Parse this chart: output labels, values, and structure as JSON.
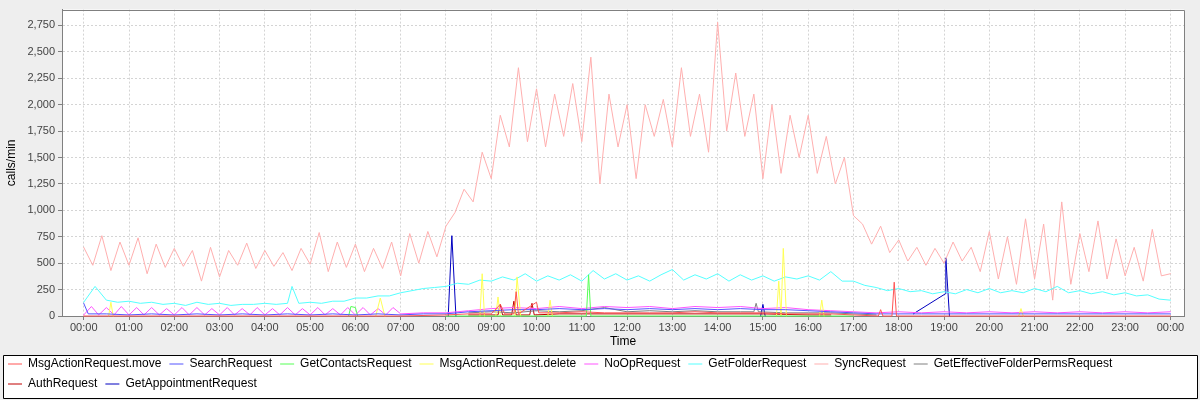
{
  "chart_data": {
    "type": "line",
    "xlabel": "Time",
    "ylabel": "calls/min",
    "xlim": [
      -0.48,
      24.3
    ],
    "xticks": [
      {
        "value": 0,
        "label": "00:00"
      },
      {
        "value": 1,
        "label": "01:00"
      },
      {
        "value": 2,
        "label": "02:00"
      },
      {
        "value": 3,
        "label": "03:00"
      },
      {
        "value": 4,
        "label": "04:00"
      },
      {
        "value": 5,
        "label": "05:00"
      },
      {
        "value": 6,
        "label": "06:00"
      },
      {
        "value": 7,
        "label": "07:00"
      },
      {
        "value": 8,
        "label": "08:00"
      },
      {
        "value": 9,
        "label": "09:00"
      },
      {
        "value": 10,
        "label": "10:00"
      },
      {
        "value": 11,
        "label": "11:00"
      },
      {
        "value": 12,
        "label": "12:00"
      },
      {
        "value": 13,
        "label": "13:00"
      },
      {
        "value": 14,
        "label": "14:00"
      },
      {
        "value": 15,
        "label": "15:00"
      },
      {
        "value": 16,
        "label": "16:00"
      },
      {
        "value": 17,
        "label": "17:00"
      },
      {
        "value": 18,
        "label": "18:00"
      },
      {
        "value": 19,
        "label": "19:00"
      },
      {
        "value": 20,
        "label": "20:00"
      },
      {
        "value": 21,
        "label": "21:00"
      },
      {
        "value": 22,
        "label": "22:00"
      },
      {
        "value": 23,
        "label": "23:00"
      },
      {
        "value": 24,
        "label": "00:00"
      }
    ],
    "ylim": [
      0,
      2900
    ],
    "yticks": [
      0,
      250,
      500,
      750,
      {
        "value": 1000,
        "label": "1,000"
      },
      {
        "value": 1250,
        "label": "1,250"
      },
      {
        "value": 1500,
        "label": "1,500"
      },
      {
        "value": 1750,
        "label": "1,750"
      },
      {
        "value": 2000,
        "label": "2,000"
      },
      {
        "value": 2250,
        "label": "2,250"
      },
      {
        "value": 2500,
        "label": "2,500"
      },
      {
        "value": 2750,
        "label": "2,750"
      }
    ],
    "grid": true,
    "legend": "bottom",
    "marker": "none",
    "line_style": "solid",
    "series": [
      {
        "name": "MsgActionRequest.move",
        "color": "#ff5555",
        "x": [
          0,
          1,
          2,
          3,
          4,
          5,
          6,
          7,
          8,
          8.5,
          9,
          9.2,
          9.3,
          9.5,
          9.55,
          9.6,
          10,
          10.05,
          10.5,
          11,
          11.5,
          12,
          12.5,
          13,
          13.5,
          14,
          14.5,
          15,
          15.5,
          16,
          16.5,
          17,
          17.55,
          17.6,
          17.65,
          17.85,
          17.9,
          17.95,
          18.5,
          19,
          20,
          21,
          22,
          23,
          24
        ],
        "values": [
          0,
          0,
          0,
          0,
          0,
          0,
          0,
          0,
          10,
          20,
          20,
          110,
          20,
          20,
          230,
          20,
          130,
          30,
          30,
          40,
          30,
          30,
          30,
          30,
          40,
          30,
          30,
          30,
          20,
          20,
          20,
          10,
          0,
          60,
          0,
          0,
          320,
          0,
          0,
          0,
          0,
          0,
          0,
          0,
          0
        ]
      },
      {
        "name": "SearchRequest",
        "color": "#5555ff",
        "x": [
          0,
          0.1,
          0.5,
          1,
          1.5,
          2,
          2.5,
          3,
          3.5,
          4,
          4.5,
          5,
          5.5,
          6,
          6.5,
          7,
          7.5,
          8,
          8.5,
          9,
          9.5,
          10,
          10.5,
          11,
          11.5,
          12,
          12.5,
          13,
          13.5,
          14,
          14.5,
          15,
          15.5,
          16,
          16.5,
          17,
          17.5,
          18,
          18.5,
          19,
          19.5,
          20,
          20.5,
          21,
          21.5,
          22,
          22.5,
          23,
          23.5,
          24
        ],
        "values": [
          120,
          20,
          20,
          10,
          20,
          10,
          20,
          10,
          20,
          10,
          20,
          10,
          20,
          10,
          20,
          10,
          20,
          20,
          40,
          50,
          60,
          60,
          70,
          60,
          70,
          60,
          70,
          60,
          70,
          60,
          70,
          60,
          60,
          50,
          40,
          30,
          20,
          20,
          20,
          20,
          20,
          20,
          20,
          20,
          20,
          20,
          20,
          20,
          20,
          20
        ]
      },
      {
        "name": "GetContactsRequest",
        "color": "#55ff55",
        "x": [
          5.85,
          5.9,
          6,
          6.05,
          7,
          8,
          10,
          11.1,
          11.15,
          11.2,
          13,
          15,
          17
        ],
        "values": [
          0,
          90,
          80,
          0,
          null,
          0,
          0,
          0,
          390,
          0,
          0,
          0,
          0
        ]
      },
      {
        "name": "MsgActionRequest.delete",
        "color": "#ffff55",
        "x": [
          0.55,
          0.6,
          0.65,
          3,
          6.45,
          6.55,
          6.65,
          7.5,
          8.75,
          8.8,
          8.85,
          9,
          9.1,
          9.15,
          9.2,
          9.3,
          9.52,
          9.57,
          9.65,
          10,
          10.25,
          10.3,
          10.35,
          12,
          15.3,
          15.35,
          15.4,
          15.45,
          15.52,
          16,
          16.25,
          16.3,
          16.35,
          18,
          20.65,
          20.7,
          20.75
        ],
        "values": [
          0,
          130,
          0,
          null,
          0,
          170,
          0,
          null,
          0,
          400,
          0,
          null,
          0,
          180,
          0,
          null,
          0,
          370,
          0,
          null,
          0,
          150,
          0,
          null,
          0,
          330,
          0,
          640,
          0,
          null,
          0,
          150,
          0,
          null,
          0,
          70,
          0
        ]
      },
      {
        "name": "NoOpRequest",
        "color": "#ff55ff",
        "x": [
          0,
          0.17,
          0.33,
          0.5,
          0.67,
          0.83,
          1,
          1.17,
          1.33,
          1.5,
          1.67,
          1.83,
          2,
          2.17,
          2.33,
          2.5,
          2.67,
          2.83,
          3,
          3.17,
          3.33,
          3.5,
          3.67,
          3.83,
          4,
          4.17,
          4.33,
          4.5,
          4.67,
          4.83,
          5,
          5.17,
          5.33,
          5.5,
          5.67,
          5.83,
          6,
          6.17,
          6.33,
          6.5,
          6.67,
          6.83,
          7,
          7.5,
          8,
          8.5,
          9,
          9.5,
          10,
          10.5,
          11,
          11.5,
          12,
          12.5,
          13,
          13.5,
          14,
          14.5,
          15,
          15.5,
          16,
          16.5,
          17,
          17.5,
          18,
          18.5,
          19,
          19.5,
          20,
          20.5,
          21,
          21.5,
          22,
          22.5,
          23,
          23.5,
          24
        ],
        "values": [
          10,
          90,
          10,
          80,
          10,
          90,
          10,
          80,
          10,
          80,
          10,
          70,
          10,
          80,
          10,
          80,
          10,
          70,
          10,
          80,
          10,
          70,
          10,
          80,
          10,
          70,
          10,
          80,
          10,
          70,
          10,
          80,
          10,
          70,
          10,
          80,
          10,
          80,
          10,
          70,
          10,
          80,
          20,
          30,
          30,
          50,
          70,
          80,
          70,
          90,
          70,
          90,
          80,
          90,
          70,
          90,
          80,
          90,
          70,
          80,
          60,
          50,
          40,
          30,
          40,
          30,
          40,
          30,
          40,
          30,
          40,
          30,
          40,
          30,
          40,
          30,
          40
        ]
      },
      {
        "name": "GetFolderRequest",
        "color": "#55ffff",
        "x": [
          0,
          0.25,
          0.5,
          0.75,
          1,
          1.25,
          1.5,
          1.75,
          2,
          2.25,
          2.5,
          2.75,
          3,
          3.25,
          3.5,
          3.75,
          4,
          4.25,
          4.5,
          4.6,
          4.75,
          5,
          5.25,
          5.5,
          5.75,
          6,
          6.25,
          6.5,
          6.75,
          7,
          7.25,
          7.5,
          7.75,
          8,
          8.25,
          8.5,
          8.75,
          9,
          9.25,
          9.5,
          9.75,
          10,
          10.25,
          10.5,
          10.75,
          11,
          11.25,
          11.5,
          11.75,
          12,
          12.25,
          12.5,
          12.75,
          13,
          13.25,
          13.5,
          13.75,
          14,
          14.25,
          14.5,
          14.75,
          15,
          15.25,
          15.5,
          15.75,
          16,
          16.25,
          16.5,
          16.75,
          17,
          17.25,
          17.5,
          17.75,
          18,
          18.25,
          18.5,
          18.75,
          19,
          19.25,
          19.5,
          19.75,
          20,
          20.25,
          20.5,
          20.75,
          21,
          21.25,
          21.5,
          21.75,
          22,
          22.25,
          22.5,
          22.75,
          23,
          23.25,
          23.5,
          23.75,
          24
        ],
        "values": [
          130,
          280,
          150,
          130,
          140,
          120,
          130,
          110,
          120,
          100,
          130,
          110,
          120,
          100,
          110,
          110,
          120,
          110,
          120,
          280,
          120,
          130,
          120,
          140,
          140,
          170,
          170,
          190,
          190,
          220,
          240,
          260,
          270,
          280,
          310,
          300,
          340,
          330,
          370,
          340,
          400,
          330,
          380,
          340,
          390,
          330,
          430,
          350,
          400,
          340,
          380,
          330,
          390,
          440,
          340,
          390,
          350,
          400,
          330,
          390,
          340,
          380,
          330,
          370,
          350,
          380,
          340,
          420,
          330,
          330,
          290,
          270,
          240,
          260,
          230,
          240,
          210,
          230,
          210,
          250,
          220,
          260,
          220,
          240,
          220,
          260,
          230,
          280,
          220,
          240,
          210,
          230,
          200,
          220,
          190,
          200,
          160,
          150
        ]
      },
      {
        "name": "SyncRequest",
        "color": "#ffafaf",
        "x": [
          0,
          0.2,
          0.4,
          0.6,
          0.8,
          1,
          1.2,
          1.4,
          1.6,
          1.8,
          2,
          2.2,
          2.4,
          2.6,
          2.8,
          3,
          3.2,
          3.4,
          3.6,
          3.8,
          4,
          4.2,
          4.4,
          4.6,
          4.8,
          5,
          5.2,
          5.4,
          5.6,
          5.8,
          6,
          6.2,
          6.4,
          6.6,
          6.8,
          7,
          7.2,
          7.4,
          7.6,
          7.8,
          8,
          8.2,
          8.4,
          8.6,
          8.8,
          9,
          9.2,
          9.4,
          9.6,
          9.8,
          10,
          10.2,
          10.4,
          10.6,
          10.8,
          11,
          11.2,
          11.4,
          11.6,
          11.8,
          12,
          12.2,
          12.4,
          12.6,
          12.8,
          13,
          13.2,
          13.4,
          13.6,
          13.8,
          14,
          14.2,
          14.4,
          14.6,
          14.8,
          15,
          15.2,
          15.4,
          15.6,
          15.8,
          16,
          16.2,
          16.4,
          16.6,
          16.8,
          17,
          17.2,
          17.4,
          17.6,
          17.8,
          18,
          18.2,
          18.4,
          18.6,
          18.8,
          19,
          19.2,
          19.4,
          19.6,
          19.8,
          20,
          20.2,
          20.4,
          20.6,
          20.8,
          21,
          21.2,
          21.4,
          21.6,
          21.8,
          22,
          22.2,
          22.4,
          22.6,
          22.8,
          23,
          23.2,
          23.4,
          23.6,
          23.8,
          24
        ],
        "values": [
          650,
          480,
          760,
          430,
          700,
          480,
          740,
          400,
          680,
          460,
          640,
          470,
          620,
          330,
          650,
          370,
          620,
          480,
          690,
          450,
          620,
          470,
          600,
          430,
          640,
          490,
          790,
          420,
          700,
          460,
          680,
          420,
          640,
          450,
          700,
          380,
          780,
          500,
          800,
          560,
          850,
          980,
          1200,
          1080,
          1550,
          1300,
          1900,
          1600,
          2350,
          1650,
          2150,
          1600,
          2100,
          1700,
          2200,
          1650,
          2450,
          1250,
          2100,
          1600,
          2000,
          1300,
          2000,
          1700,
          2050,
          1600,
          2350,
          1700,
          2100,
          1550,
          2780,
          1750,
          2300,
          1700,
          2100,
          1300,
          2000,
          1350,
          1900,
          1500,
          1900,
          1350,
          1700,
          1250,
          1500,
          950,
          870,
          680,
          850,
          600,
          720,
          520,
          650,
          480,
          640,
          500,
          700,
          520,
          650,
          420,
          800,
          350,
          750,
          300,
          920,
          350,
          870,
          150,
          1080,
          300,
          780,
          420,
          900,
          350,
          730,
          380,
          650,
          330,
          820,
          380,
          400
        ]
      },
      {
        "name": "GetEffectiveFolderPermsRequest",
        "color": "#808080",
        "x": [
          8.5,
          9,
          9.5,
          10,
          10.5,
          11,
          11.5,
          12,
          12.5,
          13,
          13.5,
          14,
          14.5,
          14.8,
          14.85,
          14.9,
          15.5,
          16,
          16.5,
          17,
          17.5
        ],
        "values": [
          30,
          40,
          30,
          50,
          40,
          50,
          80,
          40,
          50,
          40,
          50,
          40,
          40,
          40,
          120,
          40,
          30,
          30,
          30,
          20,
          10
        ]
      },
      {
        "name": "AuthRequest",
        "color": "#c00000",
        "x": [
          8.5,
          9,
          9.15,
          9.2,
          9.25,
          9.45,
          9.5,
          9.55,
          9.85,
          9.9,
          9.95,
          10.5,
          11,
          12,
          13,
          14,
          15,
          16,
          16.5
        ],
        "values": [
          10,
          10,
          10,
          110,
          10,
          10,
          140,
          10,
          10,
          120,
          10,
          20,
          20,
          20,
          20,
          20,
          20,
          10,
          10
        ]
      },
      {
        "name": "GetAppointmentRequest",
        "color": "#0000c0",
        "x": [
          8.05,
          8.13,
          8.22,
          10,
          14.95,
          15,
          15.05,
          17,
          18.32,
          19.03,
          19.04,
          19.12
        ],
        "values": [
          0,
          760,
          0,
          null,
          0,
          110,
          0,
          null,
          20,
          210,
          550,
          0
        ]
      }
    ]
  }
}
